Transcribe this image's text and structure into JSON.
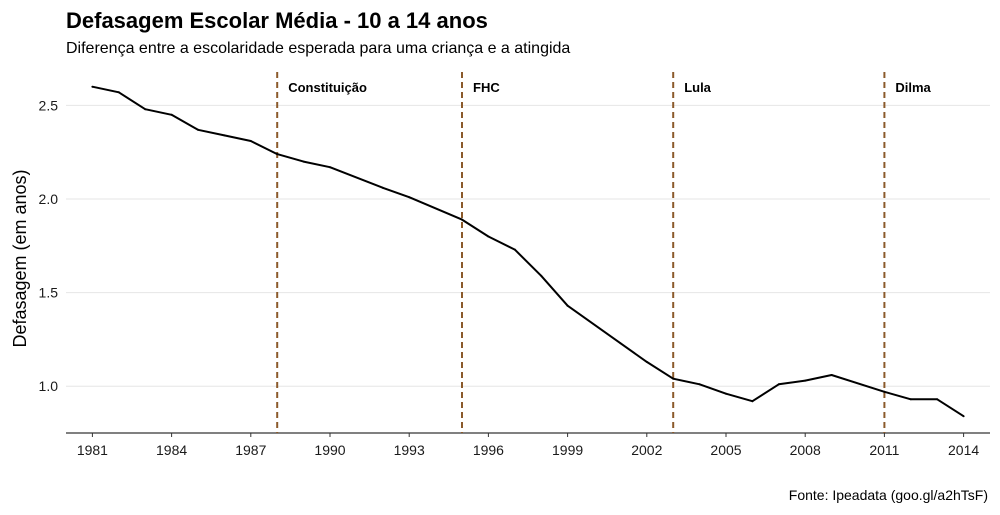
{
  "header": {
    "title": "Defasagem Escolar Média - 10 a 14 anos",
    "subtitle": "Diferença entre a escolaridade esperada para uma criança e a atingida"
  },
  "footer": {
    "caption": "Fonte: Ipeadata (goo.gl/a2hTsF)"
  },
  "chart_data": {
    "type": "line",
    "title": "Defasagem Escolar Média - 10 a 14 anos",
    "subtitle": "Diferença entre a escolaridade esperada para uma criança e a atingida",
    "xlabel": "",
    "ylabel": "Defasagem (em anos)",
    "xlim": [
      1980,
      2015
    ],
    "ylim": [
      0.75,
      2.7
    ],
    "x_ticks": [
      1981,
      1984,
      1987,
      1990,
      1993,
      1996,
      1999,
      2002,
      2005,
      2008,
      2011,
      2014
    ],
    "y_ticks": [
      1.0,
      1.5,
      2.0,
      2.5
    ],
    "y_tick_labels": [
      "1.0",
      "1.5",
      "2.0",
      "2.5"
    ],
    "grid": "horizontal",
    "line_color": "#000000",
    "event_line_color": "#8B5A2B",
    "series": [
      {
        "x": [
          1981,
          1982,
          1983,
          1984,
          1985,
          1986,
          1987,
          1988,
          1989,
          1990,
          1992,
          1993,
          1995,
          1996,
          1997,
          1998,
          1999,
          2001,
          2002,
          2003,
          2004,
          2005,
          2006,
          2007,
          2008,
          2009,
          2011,
          2012,
          2013,
          2014
        ],
        "y": [
          2.6,
          2.57,
          2.48,
          2.45,
          2.37,
          2.34,
          2.31,
          2.24,
          2.2,
          2.17,
          2.06,
          2.01,
          1.89,
          1.8,
          1.73,
          1.59,
          1.43,
          1.23,
          1.13,
          1.04,
          1.01,
          0.96,
          0.92,
          1.01,
          1.03,
          1.06,
          0.97,
          0.93,
          0.93,
          0.84
        ]
      }
    ],
    "events": [
      {
        "x": 1988,
        "label": "Constituição"
      },
      {
        "x": 1995,
        "label": "FHC"
      },
      {
        "x": 2003,
        "label": "Lula"
      },
      {
        "x": 2011,
        "label": "Dilma"
      }
    ]
  }
}
